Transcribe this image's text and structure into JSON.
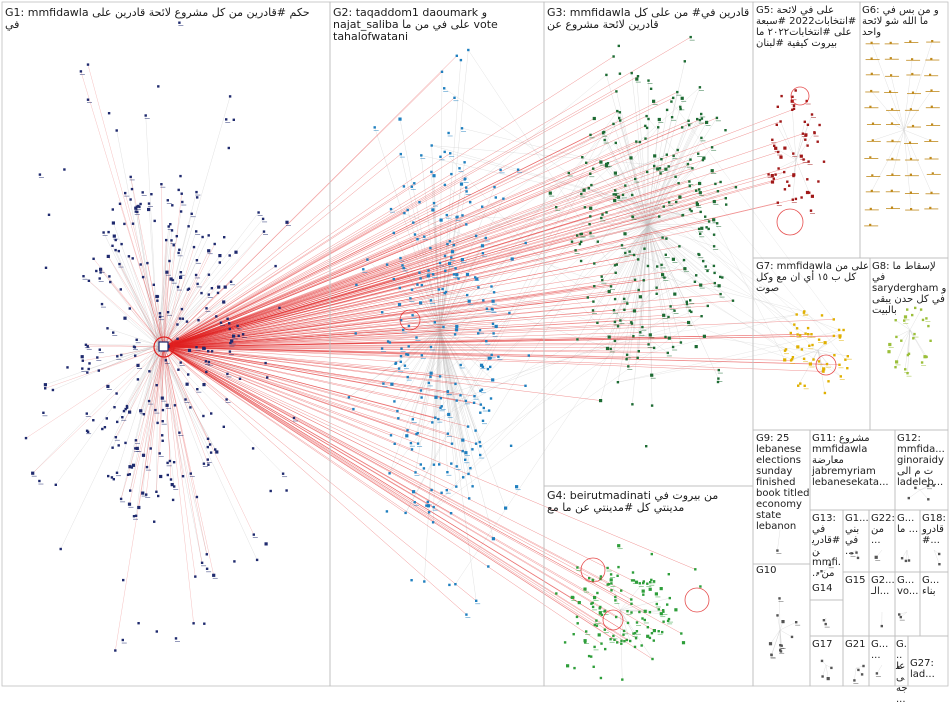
{
  "groups": [
    {
      "id": "G1",
      "label": "G1: mmfidawla حكم #قادرين من كل مشروع لائحة قادرين على في",
      "color": "#1f2a6e"
    },
    {
      "id": "G2",
      "label": "G2: taqaddom1 daoumark و najat_saliba على في من ما vote tahalofwatani",
      "color": "#1f7fbf"
    },
    {
      "id": "G3",
      "label": "G3: mmfidawla قادرين في# من على كل قادرين لائحة مشروع عن",
      "color": "#1d6b33"
    },
    {
      "id": "G4",
      "label": "G4: beirutmadinati من بيروت في مدينتي كل #مدينتي عن ما مع",
      "color": "#2e9e3a"
    },
    {
      "id": "G5",
      "label": "G5: على في لائحة #انتخابات2022 #سبعة على #انتخابات٢٠٢٢ ما بيروت كيفية #لبنان",
      "color": "#a01818"
    },
    {
      "id": "G6",
      "label": "G6: و من بس في ما الله شو لائحة واحد",
      "color": "#c08a1c"
    },
    {
      "id": "G7",
      "label": "G7: mmfidawla على من كل ب ١٥ أي ان مع وكل صوت",
      "color": "#e0b000"
    },
    {
      "id": "G8",
      "label": "G8: لإسقاط ما في sarydergham و في كل حدن يبقى بالبيت",
      "color": "#9bbf3a"
    },
    {
      "id": "G9",
      "label": "G9: 25 lebanese elections sunday finished book titled economy state lebanon",
      "color": "#555555"
    },
    {
      "id": "G10",
      "label": "G10",
      "color": "#555555"
    },
    {
      "id": "G11",
      "label": "G11: مشروع mmfidawla معارضة jabremyriam lebanesekata...",
      "color": "#7a3a99"
    },
    {
      "id": "G12",
      "label": "G12: mmfida... ginoraidy ت م الى ladeleb...",
      "color": "#555555"
    },
    {
      "id": "G13",
      "label": "G13: في #قادرين mmfi... من",
      "color": "#555555"
    },
    {
      "id": "G14",
      "label": "G14",
      "color": "#555555"
    },
    {
      "id": "G15",
      "label": "G15",
      "color": "#555555"
    },
    {
      "id": "G16",
      "label": "G1... بني في ...",
      "color": "#555555"
    },
    {
      "id": "G17",
      "label": "G17",
      "color": "#555555"
    },
    {
      "id": "G18",
      "label": "G18: قادرو #...",
      "color": "#555555"
    },
    {
      "id": "G19",
      "label": "G... ما ...",
      "color": "#555555"
    },
    {
      "id": "G20",
      "label": "G... vo...",
      "color": "#555555"
    },
    {
      "id": "G21",
      "label": "G21",
      "color": "#555555"
    },
    {
      "id": "G22",
      "label": "G22: من ...",
      "color": "#555555"
    },
    {
      "id": "G23",
      "label": "G2... الـ...",
      "color": "#555555"
    },
    {
      "id": "G24",
      "label": "G... بناء",
      "color": "#555555"
    },
    {
      "id": "G25",
      "label": "G... ...",
      "color": "#555555"
    },
    {
      "id": "G26",
      "label": "G... على جه...",
      "color": "#555555"
    },
    {
      "id": "G27",
      "label": "G27: lad...",
      "color": "#555555"
    }
  ],
  "colors": {
    "background": "#ffffff",
    "panel_border": "#bfbfbf",
    "cross_edge": "#e02020",
    "intra_edge": "#c9c9c9",
    "hub_ring": "#e02020"
  }
}
